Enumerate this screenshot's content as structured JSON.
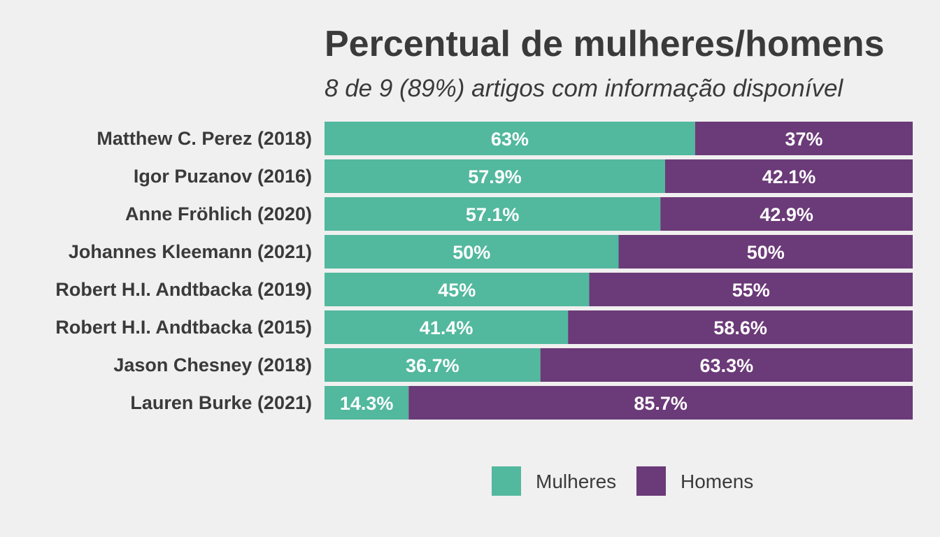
{
  "chart_data": {
    "type": "bar",
    "orientation": "horizontal",
    "stacked": true,
    "normalized": true,
    "title": "Percentual de mulheres/homens",
    "subtitle": "8 de 9 (89%) artigos com informação disponível",
    "categories": [
      "Matthew C. Perez (2018)",
      "Igor Puzanov (2016)",
      "Anne Fröhlich (2020)",
      "Johannes Kleemann (2021)",
      "Robert H.I. Andtbacka (2019)",
      "Robert H.I. Andtbacka (2015)",
      "Jason Chesney (2018)",
      "Lauren Burke (2021)"
    ],
    "series": [
      {
        "name": "Mulheres",
        "color": "#52b89e",
        "values": [
          63,
          57.9,
          57.1,
          50,
          45,
          41.4,
          36.7,
          14.3
        ],
        "labels": [
          "63%",
          "57.9%",
          "57.1%",
          "50%",
          "45%",
          "41.4%",
          "36.7%",
          "14.3%"
        ]
      },
      {
        "name": "Homens",
        "color": "#6b3a78",
        "values": [
          37,
          42.1,
          42.9,
          50,
          55,
          58.6,
          63.3,
          85.7
        ],
        "labels": [
          "37%",
          "42.1%",
          "42.9%",
          "50%",
          "55%",
          "58.6%",
          "63.3%",
          "85.7%"
        ]
      }
    ],
    "xlim": [
      0,
      100
    ],
    "grid": false,
    "legend_position": "bottom"
  }
}
